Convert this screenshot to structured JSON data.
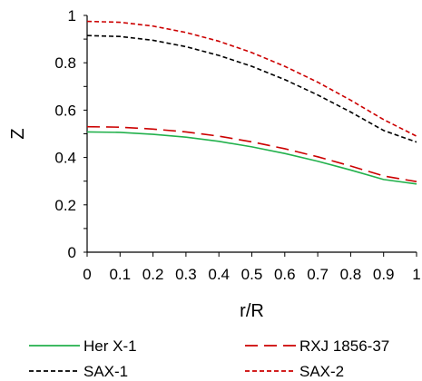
{
  "chart_data": {
    "type": "line",
    "xlabel": "r/R",
    "ylabel": "Z",
    "xlim": [
      0,
      1
    ],
    "ylim": [
      0,
      1
    ],
    "xticks": [
      "0",
      "0.1",
      "0.2",
      "0.3",
      "0.4",
      "0.5",
      "0.6",
      "0.7",
      "0.8",
      "0.9",
      "1"
    ],
    "yticks": [
      "0",
      "0.2",
      "0.4",
      "0.6",
      "0.8",
      "1"
    ],
    "grid": false,
    "legend_position": "bottom",
    "series": [
      {
        "name": "Her X-1",
        "color": "#22b14c",
        "style": "solid",
        "x": [
          0,
          0.1,
          0.2,
          0.3,
          0.4,
          0.5,
          0.6,
          0.7,
          0.8,
          0.9,
          1.0
        ],
        "y": [
          0.508,
          0.506,
          0.498,
          0.486,
          0.468,
          0.445,
          0.417,
          0.384,
          0.347,
          0.307,
          0.288
        ]
      },
      {
        "name": "RXJ 1856-37",
        "color": "#cc0000",
        "style": "longdash",
        "x": [
          0,
          0.1,
          0.2,
          0.3,
          0.4,
          0.5,
          0.6,
          0.7,
          0.8,
          0.9,
          1.0
        ],
        "y": [
          0.53,
          0.528,
          0.52,
          0.508,
          0.49,
          0.466,
          0.437,
          0.403,
          0.364,
          0.322,
          0.298
        ]
      },
      {
        "name": "SAX-1",
        "color": "#000000",
        "style": "shortdash",
        "x": [
          0,
          0.1,
          0.2,
          0.3,
          0.4,
          0.5,
          0.6,
          0.7,
          0.8,
          0.9,
          1.0
        ],
        "y": [
          0.915,
          0.911,
          0.895,
          0.868,
          0.831,
          0.785,
          0.729,
          0.664,
          0.592,
          0.514,
          0.465
        ]
      },
      {
        "name": "SAX-2",
        "color": "#cc0000",
        "style": "shortdash",
        "x": [
          0,
          0.1,
          0.2,
          0.3,
          0.4,
          0.5,
          0.6,
          0.7,
          0.8,
          0.9,
          1.0
        ],
        "y": [
          0.975,
          0.971,
          0.955,
          0.928,
          0.891,
          0.843,
          0.785,
          0.718,
          0.642,
          0.56,
          0.49
        ]
      }
    ]
  }
}
